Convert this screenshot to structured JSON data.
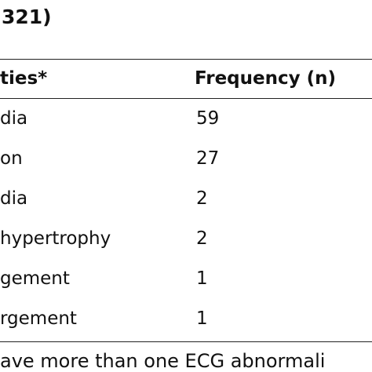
{
  "title": "321)",
  "table": {
    "header": [
      "ties*",
      "Frequency (n)"
    ],
    "rows": [
      [
        "dia",
        "59"
      ],
      [
        "on",
        "27"
      ],
      [
        "dia",
        "2"
      ],
      [
        "hypertrophy",
        "2"
      ],
      [
        "gement",
        "1"
      ],
      [
        "rgement",
        "1"
      ]
    ]
  },
  "footnote": "ave more than one ECG abnormali"
}
